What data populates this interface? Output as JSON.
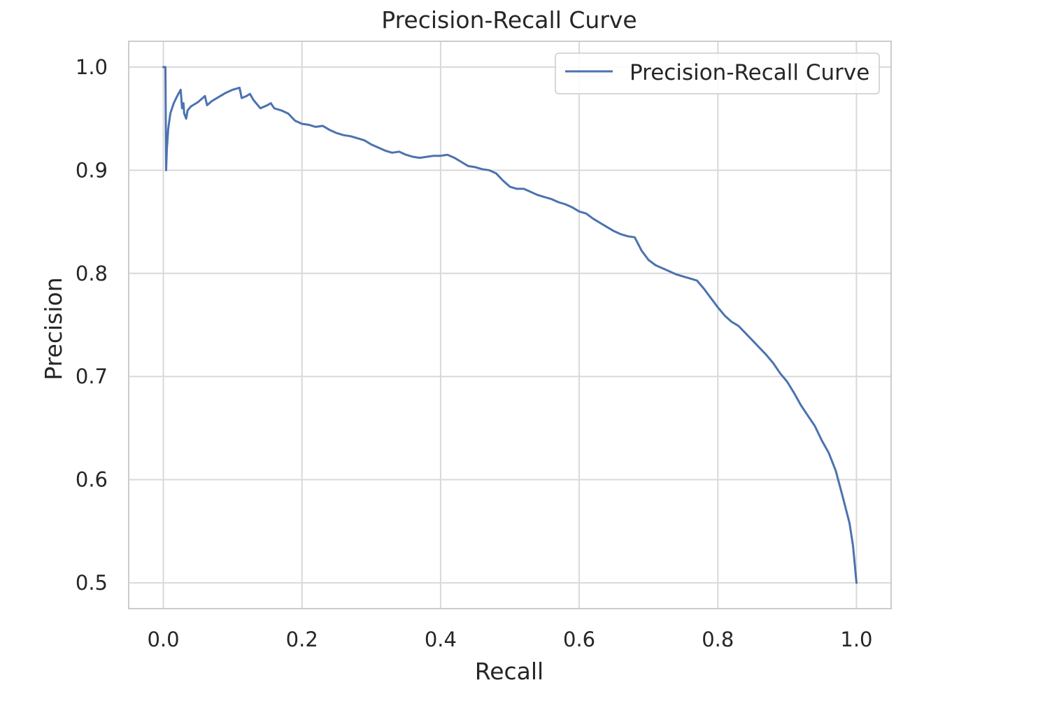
{
  "chart_data": {
    "type": "line",
    "title": "Precision-Recall Curve",
    "xlabel": "Recall",
    "ylabel": "Precision",
    "xlim": [
      -0.05,
      1.05
    ],
    "ylim": [
      0.475,
      1.025
    ],
    "xticks": [
      0.0,
      0.2,
      0.4,
      0.6,
      0.8,
      1.0
    ],
    "xtick_labels": [
      "0.0",
      "0.2",
      "0.4",
      "0.6",
      "0.8",
      "1.0"
    ],
    "yticks": [
      0.5,
      0.6,
      0.7,
      0.8,
      0.9,
      1.0
    ],
    "ytick_labels": [
      "0.5",
      "0.6",
      "0.7",
      "0.8",
      "0.9",
      "1.0"
    ],
    "grid": true,
    "legend": {
      "position": "upper-right",
      "entries": [
        "Precision-Recall Curve"
      ]
    },
    "colors": {
      "line": "#4c72b0",
      "grid": "#d9d9d9",
      "spine": "#cccccc",
      "text": "#262626",
      "legend_border": "#cccccc"
    },
    "series": [
      {
        "name": "Precision-Recall Curve",
        "x": [
          0.0,
          0.003,
          0.004,
          0.005,
          0.007,
          0.01,
          0.015,
          0.02,
          0.025,
          0.027,
          0.029,
          0.03,
          0.033,
          0.035,
          0.04,
          0.05,
          0.06,
          0.063,
          0.07,
          0.08,
          0.09,
          0.1,
          0.11,
          0.113,
          0.12,
          0.125,
          0.13,
          0.14,
          0.15,
          0.155,
          0.16,
          0.17,
          0.18,
          0.19,
          0.2,
          0.21,
          0.22,
          0.23,
          0.24,
          0.25,
          0.26,
          0.27,
          0.28,
          0.29,
          0.3,
          0.31,
          0.32,
          0.33,
          0.34,
          0.35,
          0.36,
          0.37,
          0.38,
          0.39,
          0.4,
          0.41,
          0.42,
          0.43,
          0.44,
          0.45,
          0.46,
          0.47,
          0.48,
          0.49,
          0.5,
          0.51,
          0.52,
          0.53,
          0.54,
          0.55,
          0.56,
          0.57,
          0.58,
          0.59,
          0.6,
          0.61,
          0.62,
          0.63,
          0.64,
          0.65,
          0.66,
          0.67,
          0.68,
          0.69,
          0.7,
          0.71,
          0.72,
          0.73,
          0.74,
          0.75,
          0.76,
          0.77,
          0.78,
          0.79,
          0.8,
          0.81,
          0.82,
          0.83,
          0.84,
          0.85,
          0.86,
          0.87,
          0.88,
          0.89,
          0.9,
          0.91,
          0.92,
          0.93,
          0.94,
          0.95,
          0.96,
          0.97,
          0.98,
          0.99,
          0.995,
          1.0
        ],
        "y": [
          1.0,
          1.0,
          0.9,
          0.92,
          0.94,
          0.955,
          0.965,
          0.972,
          0.978,
          0.96,
          0.965,
          0.955,
          0.95,
          0.958,
          0.962,
          0.966,
          0.972,
          0.963,
          0.967,
          0.971,
          0.975,
          0.978,
          0.98,
          0.97,
          0.972,
          0.974,
          0.968,
          0.96,
          0.963,
          0.965,
          0.96,
          0.958,
          0.955,
          0.948,
          0.945,
          0.944,
          0.942,
          0.943,
          0.939,
          0.936,
          0.934,
          0.933,
          0.931,
          0.929,
          0.925,
          0.922,
          0.919,
          0.917,
          0.918,
          0.915,
          0.913,
          0.912,
          0.913,
          0.914,
          0.914,
          0.915,
          0.912,
          0.908,
          0.904,
          0.903,
          0.901,
          0.9,
          0.897,
          0.89,
          0.884,
          0.882,
          0.882,
          0.879,
          0.876,
          0.874,
          0.872,
          0.869,
          0.867,
          0.864,
          0.86,
          0.858,
          0.853,
          0.849,
          0.845,
          0.841,
          0.838,
          0.836,
          0.835,
          0.822,
          0.813,
          0.808,
          0.805,
          0.802,
          0.799,
          0.797,
          0.795,
          0.793,
          0.785,
          0.776,
          0.767,
          0.759,
          0.753,
          0.749,
          0.742,
          0.735,
          0.728,
          0.721,
          0.713,
          0.703,
          0.695,
          0.684,
          0.672,
          0.662,
          0.652,
          0.638,
          0.626,
          0.609,
          0.584,
          0.558,
          0.536,
          0.5
        ]
      }
    ]
  }
}
